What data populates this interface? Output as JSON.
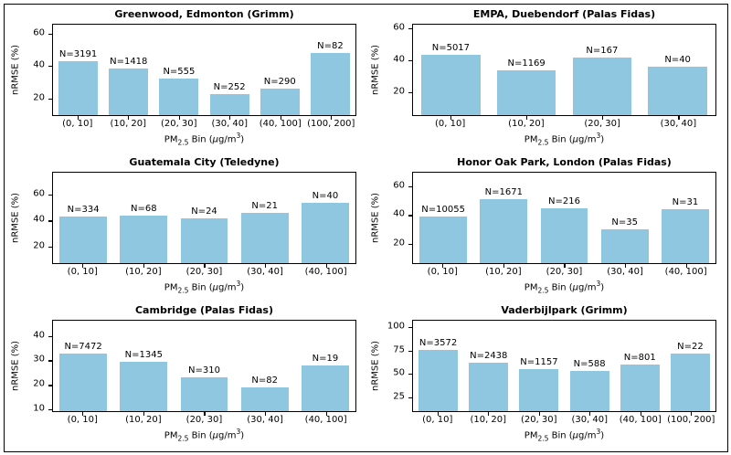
{
  "figure": {
    "ylabel": "nRMSE (%)",
    "xlabel_text": "PM2.5 Bin (μg/m³)",
    "xlabel_parts": {
      "pm": "PM",
      "sub": "2.5",
      "mid": " Bin (",
      "mu": "μ",
      "unit": "g/m",
      "sup": "3",
      "end": ")"
    },
    "colors": {
      "bar": "#8fc6e0",
      "spine": "#000000",
      "text": "#000000",
      "background": "#ffffff"
    }
  },
  "chart_data": [
    {
      "type": "bar",
      "title": "Greenwood, Edmonton (Grimm)",
      "xlabel": "PM2.5 Bin (μg/m³)",
      "ylabel": "nRMSE (%)",
      "categories": [
        "(0, 10]",
        "(10, 20]",
        "(20, 30]",
        "(30, 40]",
        "(40, 100]",
        "(100, 200]"
      ],
      "values": [
        43,
        38.5,
        32,
        22,
        25.5,
        48
      ],
      "counts": [
        3191,
        1418,
        555,
        252,
        290,
        82
      ],
      "bar_count_labels": [
        "N=3191",
        "N=1418",
        "N=555",
        "N=252",
        "N=290",
        "N=82"
      ],
      "yticks": [
        20,
        40,
        60
      ],
      "ylim": [
        9,
        66
      ],
      "grid": false,
      "legend": false
    },
    {
      "type": "bar",
      "title": "EMPA, Duebendorf (Palas Fidas)",
      "xlabel": "PM2.5 Bin (μg/m³)",
      "ylabel": "nRMSE (%)",
      "categories": [
        "(0, 10]",
        "(10, 20]",
        "(20, 30]",
        "(30, 40]"
      ],
      "values": [
        43.5,
        34,
        42,
        36
      ],
      "counts": [
        5017,
        1169,
        167,
        40
      ],
      "bar_count_labels": [
        "N=5017",
        "N=1169",
        "N=167",
        "N=40"
      ],
      "yticks": [
        20,
        40,
        60
      ],
      "ylim": [
        5,
        63
      ],
      "grid": false,
      "legend": false
    },
    {
      "type": "bar",
      "title": "Guatemala City (Teledyne)",
      "xlabel": "PM2.5 Bin (μg/m³)",
      "ylabel": "nRMSE (%)",
      "categories": [
        "(0, 10]",
        "(10, 20]",
        "(20, 30]",
        "(30, 40]",
        "(40, 100]"
      ],
      "values": [
        43,
        43.5,
        42,
        46,
        54
      ],
      "counts": [
        334,
        68,
        24,
        21,
        40
      ],
      "bar_count_labels": [
        "N=334",
        "N=68",
        "N=24",
        "N=21",
        "N=40"
      ],
      "yticks": [
        20,
        40,
        60
      ],
      "ylim": [
        7,
        77
      ],
      "grid": false,
      "legend": false
    },
    {
      "type": "bar",
      "title": "Honor Oak Park, London (Palas Fidas)",
      "xlabel": "PM2.5 Bin (μg/m³)",
      "ylabel": "nRMSE (%)",
      "categories": [
        "(0, 10]",
        "(10, 20]",
        "(20, 30]",
        "(30, 40]",
        "(40, 100]"
      ],
      "values": [
        39,
        51,
        45,
        30,
        44
      ],
      "counts": [
        10055,
        1671,
        216,
        35,
        31
      ],
      "bar_count_labels": [
        "N=10055",
        "N=1671",
        "N=216",
        "N=35",
        "N=31"
      ],
      "yticks": [
        20,
        40,
        60
      ],
      "ylim": [
        6,
        70
      ],
      "grid": false,
      "legend": false
    },
    {
      "type": "bar",
      "title": "Cambridge (Palas Fidas)",
      "xlabel": "PM2.5 Bin (μg/m³)",
      "ylabel": "nRMSE (%)",
      "categories": [
        "(0, 10]",
        "(10, 20]",
        "(20, 30]",
        "(30, 40]",
        "(40, 100]"
      ],
      "values": [
        33,
        29.5,
        23,
        19,
        28
      ],
      "counts": [
        7472,
        1345,
        310,
        82,
        19
      ],
      "bar_count_labels": [
        "N=7472",
        "N=1345",
        "N=310",
        "N=82",
        "N=19"
      ],
      "yticks": [
        10,
        20,
        30,
        40
      ],
      "ylim": [
        9,
        46.5
      ],
      "grid": false,
      "legend": false
    },
    {
      "type": "bar",
      "title": "Vaderbijlpark (Grimm)",
      "xlabel": "PM2.5 Bin (μg/m³)",
      "ylabel": "nRMSE (%)",
      "categories": [
        "(0, 10]",
        "(10, 20]",
        "(20, 30]",
        "(30, 40]",
        "(40, 100]",
        "(100, 200]"
      ],
      "values": [
        76,
        62,
        55,
        53,
        60,
        72
      ],
      "counts": [
        3572,
        2438,
        1157,
        588,
        801,
        22
      ],
      "bar_count_labels": [
        "N=3572",
        "N=2438",
        "N=1157",
        "N=588",
        "N=801",
        "N=22"
      ],
      "yticks": [
        25,
        50,
        75,
        100
      ],
      "ylim": [
        9,
        108
      ],
      "grid": false,
      "legend": false
    }
  ]
}
